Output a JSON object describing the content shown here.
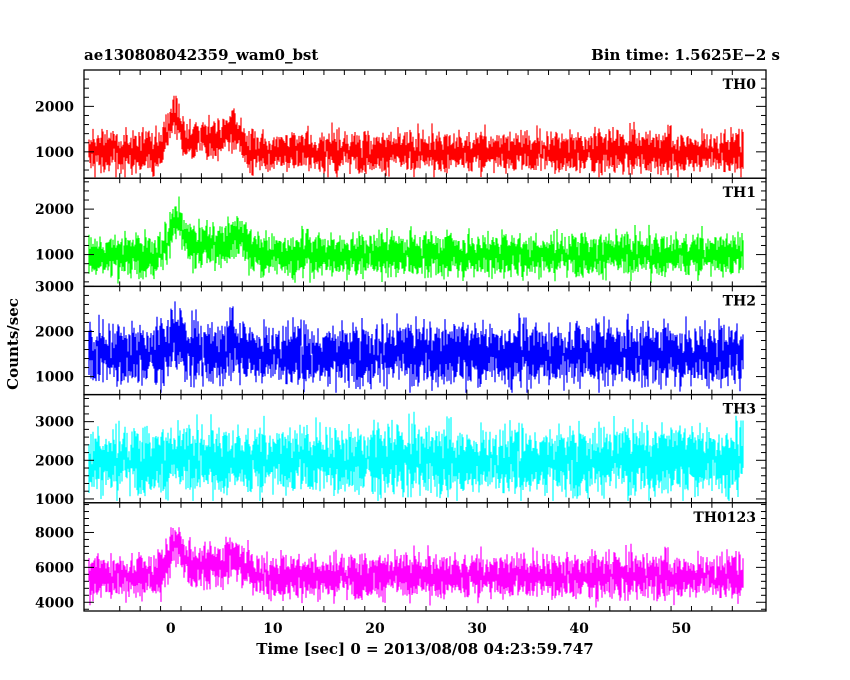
{
  "header": {
    "title": "ae130808042359_wam0_bst",
    "bin_time": "Bin time: 1.5625E−2 s"
  },
  "chart_data": {
    "type": "line",
    "title": "ae130808042359_wam0_bst",
    "xlabel": "Time [sec] 0 = 2013/08/08 04:23:59.747",
    "ylabel": "Counts/sec",
    "xlim": [
      -8.5,
      58.3
    ],
    "x_ticks": [
      0,
      10,
      20,
      30,
      40,
      50
    ],
    "x_start": -8.0,
    "x_end": 56.0,
    "bin_time": 0.015625,
    "grid": false,
    "panels": [
      {
        "name": "TH0",
        "color": "#ff0000",
        "ylim": [
          420,
          2800
        ],
        "yticks": [
          1000,
          2000
        ],
        "baseline": 1000,
        "noise": 220,
        "lower": 440,
        "upper": 2750,
        "burst": [
          {
            "t": 0.3,
            "amp": 750,
            "width": 0.8
          },
          {
            "t": 6.0,
            "amp": 380,
            "width": 1.2
          },
          {
            "t": 3.5,
            "amp": 250,
            "width": 2.5
          }
        ]
      },
      {
        "name": "TH1",
        "color": "#00ff00",
        "ylim": [
          300,
          2680
        ],
        "yticks": [
          1000,
          2000
        ],
        "baseline": 1000,
        "noise": 230,
        "lower": 320,
        "upper": 2620,
        "burst": [
          {
            "t": 0.5,
            "amp": 650,
            "width": 0.9
          },
          {
            "t": 6.5,
            "amp": 330,
            "width": 1.2
          },
          {
            "t": 3.5,
            "amp": 220,
            "width": 2.5
          }
        ]
      },
      {
        "name": "TH2",
        "color": "#0000ff",
        "ylim": [
          600,
          3000
        ],
        "yticks": [
          1000,
          2000,
          3000
        ],
        "baseline": 1500,
        "noise": 330,
        "lower": 640,
        "upper": 2980,
        "burst": [
          {
            "t": 0.5,
            "amp": 350,
            "width": 0.9
          },
          {
            "t": 6.5,
            "amp": 200,
            "width": 1.2
          }
        ]
      },
      {
        "name": "TH3",
        "color": "#00ffff",
        "ylim": [
          900,
          3700
        ],
        "yticks": [
          1000,
          2000,
          3000
        ],
        "baseline": 2000,
        "noise": 420,
        "lower": 950,
        "upper": 3650,
        "burst": []
      },
      {
        "name": "TH0123",
        "color": "#ff00ff",
        "ylim": [
          3500,
          9700
        ],
        "yticks": [
          4000,
          6000,
          8000
        ],
        "baseline": 5500,
        "noise": 620,
        "lower": 3700,
        "upper": 9600,
        "burst": [
          {
            "t": 0.5,
            "amp": 1700,
            "width": 0.9
          },
          {
            "t": 6.5,
            "amp": 900,
            "width": 1.3
          },
          {
            "t": 3.5,
            "amp": 600,
            "width": 2.5
          }
        ]
      }
    ]
  }
}
